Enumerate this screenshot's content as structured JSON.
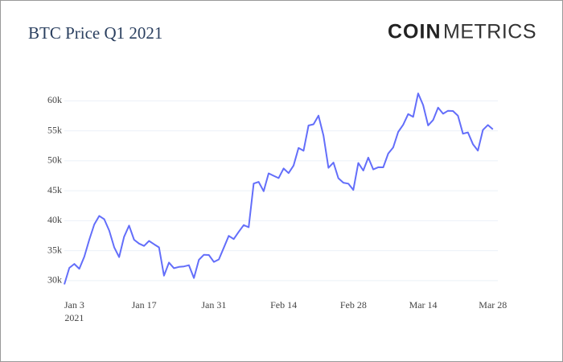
{
  "chart_data": {
    "type": "line",
    "title": "BTC Price Q1 2021",
    "logo": {
      "bold": "COIN",
      "light": "METRICS"
    },
    "x": [
      "2021-01-01",
      "2021-01-02",
      "2021-01-03",
      "2021-01-04",
      "2021-01-05",
      "2021-01-06",
      "2021-01-07",
      "2021-01-08",
      "2021-01-09",
      "2021-01-10",
      "2021-01-11",
      "2021-01-12",
      "2021-01-13",
      "2021-01-14",
      "2021-01-15",
      "2021-01-16",
      "2021-01-17",
      "2021-01-18",
      "2021-01-19",
      "2021-01-20",
      "2021-01-21",
      "2021-01-22",
      "2021-01-23",
      "2021-01-24",
      "2021-01-25",
      "2021-01-26",
      "2021-01-27",
      "2021-01-28",
      "2021-01-29",
      "2021-01-30",
      "2021-01-31",
      "2021-02-01",
      "2021-02-02",
      "2021-02-03",
      "2021-02-04",
      "2021-02-05",
      "2021-02-06",
      "2021-02-07",
      "2021-02-08",
      "2021-02-09",
      "2021-02-10",
      "2021-02-11",
      "2021-02-12",
      "2021-02-13",
      "2021-02-14",
      "2021-02-15",
      "2021-02-16",
      "2021-02-17",
      "2021-02-18",
      "2021-02-19",
      "2021-02-20",
      "2021-02-21",
      "2021-02-22",
      "2021-02-23",
      "2021-02-24",
      "2021-02-25",
      "2021-02-26",
      "2021-02-27",
      "2021-02-28",
      "2021-03-01",
      "2021-03-02",
      "2021-03-03",
      "2021-03-04",
      "2021-03-05",
      "2021-03-06",
      "2021-03-07",
      "2021-03-08",
      "2021-03-09",
      "2021-03-10",
      "2021-03-11",
      "2021-03-12",
      "2021-03-13",
      "2021-03-14",
      "2021-03-15",
      "2021-03-16",
      "2021-03-17",
      "2021-03-18",
      "2021-03-19",
      "2021-03-20",
      "2021-03-21",
      "2021-03-22",
      "2021-03-23",
      "2021-03-24",
      "2021-03-25",
      "2021-03-26",
      "2021-03-27",
      "2021-03-28"
    ],
    "series": [
      {
        "name": "BTC",
        "color": "#636efa",
        "values": [
          29374,
          32127,
          32782,
          31971,
          33992,
          36824,
          39371,
          40797,
          40254,
          38356,
          35566,
          33922,
          37316,
          39187,
          36825,
          36178,
          35792,
          36630,
          36069,
          35548,
          30825,
          33005,
          32067,
          32289,
          32366,
          32569,
          30432,
          33466,
          34316,
          34269,
          33114,
          33538,
          35510,
          37472,
          36926,
          38144,
          39266,
          38903,
          46196,
          46481,
          44918,
          47909,
          47504,
          47105,
          48717,
          47945,
          49199,
          52149,
          51679,
          55888,
          56099,
          57539,
          54207,
          48824,
          49705,
          47093,
          46339,
          46188,
          45137,
          49631,
          48378,
          50538,
          48561,
          48927,
          48912,
          51206,
          52246,
          54824,
          56008,
          57805,
          57332,
          61243,
          59302,
          55907,
          56804,
          58870,
          57858,
          58346,
          58313,
          57523,
          54529,
          54738,
          52775,
          51704,
          55137,
          55974,
          55247
        ]
      }
    ],
    "xlim": [
      "2021-01-01",
      "2021-03-29"
    ],
    "xticks": [
      {
        "value": "2021-01-03",
        "label": "Jan 3"
      },
      {
        "value": "2021-01-17",
        "label": "Jan 17"
      },
      {
        "value": "2021-01-31",
        "label": "Jan 31"
      },
      {
        "value": "2021-02-14",
        "label": "Feb 14"
      },
      {
        "value": "2021-02-28",
        "label": "Feb 28"
      },
      {
        "value": "2021-03-14",
        "label": "Mar 14"
      },
      {
        "value": "2021-03-28",
        "label": "Mar 28"
      }
    ],
    "xtick_year": "2021",
    "ylim": [
      28500,
      61800
    ],
    "yticks": [
      {
        "value": 30000,
        "label": "30k"
      },
      {
        "value": 35000,
        "label": "35k"
      },
      {
        "value": 40000,
        "label": "40k"
      },
      {
        "value": 45000,
        "label": "45k"
      },
      {
        "value": 50000,
        "label": "50k"
      },
      {
        "value": 55000,
        "label": "55k"
      },
      {
        "value": 60000,
        "label": "60k"
      }
    ],
    "grid": true
  }
}
